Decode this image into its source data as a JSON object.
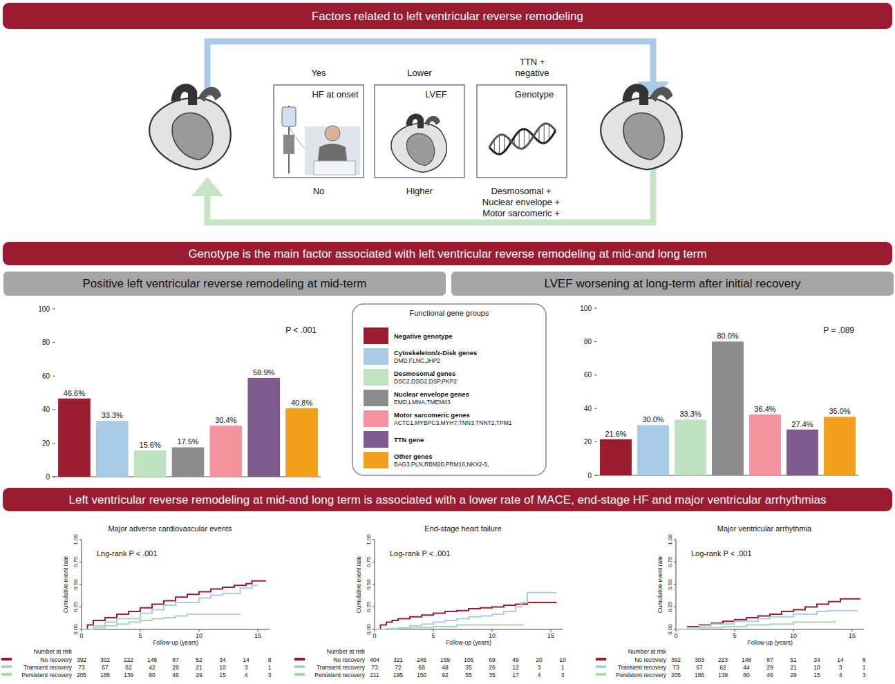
{
  "banners": [
    "Factors related to left ventricular reverse remodeling",
    "Genotype is the main factor associated with left ventricular reverse remodeling at mid-and long term",
    "Left ventricular reverse remodeling at mid-and long term is associated with a lower rate of MACE, end-stage HF and major ventricular arrhythmias"
  ],
  "diagram": {
    "factors": [
      {
        "label": "HF at onset",
        "top": [
          "Yes"
        ],
        "bottom": [
          "No"
        ]
      },
      {
        "label": "LVEF",
        "top": [
          "Lower"
        ],
        "bottom": [
          "Higher"
        ]
      },
      {
        "label": "Genotype",
        "top": [
          "TTN +",
          "negative"
        ],
        "bottom": [
          "Desmosomal +",
          "Nuclear envelope +",
          "Motor sarcomeric +"
        ]
      }
    ]
  },
  "legend_box": {
    "title": "Functional gene groups",
    "genes": [
      null,
      "DMD,FLNC,JHP2",
      "DSC2,DSG2,DSP,PKP2",
      "EMD,LMNA,TMEM43",
      "ACTC1,MYBPC3,MYH7,TNN3,TNNT2,TPM1",
      null,
      "BAG3,PLN,RBM20,PRM16,NKX2-5,"
    ]
  },
  "chart_data": [
    {
      "type": "bar",
      "title": "Positive left ventricular reverse remodeling at mid-term",
      "categories": [
        "Negative genotype",
        "Cytoskeleton/z-Disk genes",
        "Desmosomal genes",
        "Nuclear envelope genes",
        "Motor sarcomeric genes",
        "TTN gene",
        "Other genes"
      ],
      "values": [
        46.6,
        33.3,
        15.6,
        17.5,
        30.4,
        58.9,
        40.8
      ],
      "value_labels": [
        "46.6%",
        "33.3%",
        "15.6%",
        "17.5%",
        "30.4%",
        "58.9%",
        "40.8%"
      ],
      "colors": [
        "#9b1c31",
        "#a9cbe8",
        "#bfe3c0",
        "#8c8c8c",
        "#f4939d",
        "#7d5b8f",
        "#f2a11f"
      ],
      "ylim": [
        0,
        100
      ],
      "yticks": [
        0,
        20,
        40,
        60,
        80,
        100
      ],
      "grid": false,
      "data_labels": true,
      "tick_labels": "y",
      "annotation": "P < .001"
    },
    {
      "type": "bar",
      "title": "LVEF worsening at long-term after initial recovery",
      "values": [
        21.6,
        30.0,
        33.3,
        80.0,
        36.4,
        27.4,
        35.0
      ],
      "value_labels": [
        "21.6%",
        "30.0%",
        "33.3%",
        "80.0%",
        "36.4%",
        "27.4%",
        "35.0%"
      ],
      "colors": [
        "#9b1c31",
        "#a9cbe8",
        "#bfe3c0",
        "#8c8c8c",
        "#f4939d",
        "#7d5b8f",
        "#f2a11f"
      ],
      "ylim": [
        0,
        100
      ],
      "yticks": [
        0,
        20,
        40,
        60,
        80,
        100
      ],
      "grid": false,
      "data_labels": true,
      "tick_labels": "y",
      "annotation": "P = .089"
    },
    {
      "type": "line",
      "line_style": "step",
      "title": "Major adverse cardiovascular events",
      "annotation": "Lng-rank P < .001",
      "x_label": "Follow-up (years)",
      "y_label": "Cumulative event rate",
      "xlim": [
        0,
        16
      ],
      "xticks": [
        0,
        5,
        10,
        15
      ],
      "ylim": [
        0,
        1
      ],
      "yticks": [
        {
          "value": 0,
          "label": "0.00"
        },
        0.25,
        {
          "value": 0.5,
          "label": "0.50"
        },
        0.75,
        {
          "value": 1,
          "label": "1.00"
        }
      ],
      "grid": false,
      "risk_title": "Number at risk",
      "series": [
        {
          "name": "No recovery",
          "color": "#9b1c31",
          "x": [
            0,
            0.5,
            1,
            2,
            3,
            4,
            5,
            6,
            7,
            8,
            9,
            10,
            11,
            12,
            13,
            14,
            14.5,
            15.7
          ],
          "values": [
            0,
            0.05,
            0.1,
            0.13,
            0.17,
            0.2,
            0.24,
            0.28,
            0.32,
            0.36,
            0.39,
            0.42,
            0.45,
            0.47,
            0.49,
            0.51,
            0.54,
            0.54
          ],
          "at_risk": [
            392,
            302,
            222,
            148,
            87,
            52,
            34,
            14,
            8
          ]
        },
        {
          "name": "Transient recovery",
          "color": "#a9cbe8",
          "x": [
            0,
            1,
            2,
            3,
            5,
            6,
            7,
            8,
            10,
            11,
            12,
            13.5,
            14.5,
            15
          ],
          "values": [
            0,
            0.04,
            0.08,
            0.12,
            0.18,
            0.22,
            0.27,
            0.3,
            0.35,
            0.38,
            0.4,
            0.46,
            0.49,
            0.49
          ],
          "at_risk": [
            73,
            67,
            62,
            42,
            28,
            21,
            10,
            3,
            1
          ]
        },
        {
          "name": "Persistent recovery",
          "color": "#a8d8a8",
          "x": [
            0,
            1,
            2,
            3,
            4,
            5,
            6,
            7,
            8,
            9,
            13.5
          ],
          "values": [
            0,
            0.02,
            0.04,
            0.06,
            0.08,
            0.1,
            0.12,
            0.13,
            0.15,
            0.17,
            0.17
          ],
          "at_risk": [
            205,
            186,
            139,
            80,
            46,
            29,
            15,
            4,
            3
          ]
        }
      ]
    },
    {
      "type": "line",
      "line_style": "step",
      "title": "End-stage heart failure",
      "annotation": "Log-rank P < .001",
      "x_label": "Follow-up (years)",
      "y_label": "Cumulative event rate",
      "xlim": [
        0,
        16
      ],
      "xticks": [
        0,
        5,
        10,
        15
      ],
      "ylim": [
        0,
        1
      ],
      "yticks": [
        {
          "value": 0,
          "label": "0.00"
        },
        0.25,
        {
          "value": 0.5,
          "label": "0.50"
        },
        0.75,
        {
          "value": 1,
          "label": "1.00"
        }
      ],
      "grid": false,
      "risk_title": "Number at risk",
      "series": [
        {
          "name": "No recovery",
          "color": "#9b1c31",
          "x": [
            0,
            0.5,
            1,
            1.5,
            2,
            3,
            4,
            5,
            6,
            7,
            8,
            9,
            10,
            11,
            12,
            13,
            15.5
          ],
          "values": [
            0,
            0.05,
            0.08,
            0.1,
            0.12,
            0.14,
            0.16,
            0.18,
            0.2,
            0.21,
            0.23,
            0.24,
            0.25,
            0.27,
            0.28,
            0.3,
            0.3
          ],
          "at_risk": [
            404,
            321,
            245,
            169,
            106,
            69,
            49,
            20,
            10
          ]
        },
        {
          "name": "Transient recovery",
          "color": "#a9cbe8",
          "x": [
            0,
            2,
            3,
            4,
            5,
            6,
            7,
            8,
            9,
            10,
            11,
            12,
            12.5,
            13,
            15.5
          ],
          "values": [
            0,
            0.02,
            0.04,
            0.06,
            0.08,
            0.1,
            0.12,
            0.14,
            0.15,
            0.17,
            0.2,
            0.25,
            0.3,
            0.41,
            0.41
          ],
          "at_risk": [
            73,
            72,
            68,
            48,
            35,
            26,
            12,
            3,
            1
          ]
        },
        {
          "name": "Persistent recovery",
          "color": "#a8d8a8",
          "x": [
            0,
            1,
            3,
            5,
            7,
            12.7
          ],
          "values": [
            0,
            0.01,
            0.02,
            0.03,
            0.05,
            0.05
          ],
          "at_risk": [
            211,
            195,
            150,
            92,
            55,
            35,
            17,
            4,
            3
          ]
        }
      ]
    },
    {
      "type": "line",
      "line_style": "step",
      "title": "Major ventricular arrhythmia",
      "annotation": "Log-rank P < .001",
      "x_label": "Follow-up (years)",
      "y_label": "Cumulative event rate",
      "xlim": [
        0,
        16
      ],
      "xticks": [
        0,
        5,
        10,
        15
      ],
      "ylim": [
        0,
        1
      ],
      "yticks": [
        {
          "value": 0,
          "label": "0.00"
        },
        0.25,
        {
          "value": 0.5,
          "label": "0.50"
        },
        0.75,
        {
          "value": 1,
          "label": "1.00"
        }
      ],
      "grid": false,
      "risk_title": "Number at risk",
      "series": [
        {
          "name": "No recovery",
          "color": "#9b1c31",
          "x": [
            0,
            1,
            2,
            3,
            4,
            5,
            6,
            7,
            8,
            9,
            10,
            11,
            12,
            13,
            14,
            15.7
          ],
          "values": [
            0,
            0.03,
            0.05,
            0.07,
            0.09,
            0.11,
            0.13,
            0.15,
            0.17,
            0.2,
            0.22,
            0.25,
            0.28,
            0.31,
            0.34,
            0.34
          ],
          "at_risk": [
            392,
            303,
            223,
            148,
            87,
            51,
            34,
            14,
            8
          ]
        },
        {
          "name": "Transient recovery",
          "color": "#a9cbe8",
          "x": [
            0,
            1,
            2,
            3,
            5,
            7,
            8,
            10,
            12,
            13,
            15.5
          ],
          "values": [
            0,
            0.02,
            0.04,
            0.06,
            0.09,
            0.12,
            0.14,
            0.17,
            0.2,
            0.21,
            0.21
          ],
          "at_risk": [
            73,
            67,
            62,
            44,
            29,
            21,
            10,
            3,
            1
          ]
        },
        {
          "name": "Persistent recovery",
          "color": "#a8d8a8",
          "x": [
            0,
            2,
            4,
            6,
            8,
            10,
            13.5
          ],
          "values": [
            0,
            0.02,
            0.03,
            0.05,
            0.06,
            0.08,
            0.1
          ],
          "at_risk": [
            205,
            186,
            139,
            80,
            46,
            29,
            15,
            4,
            3
          ]
        }
      ]
    }
  ]
}
